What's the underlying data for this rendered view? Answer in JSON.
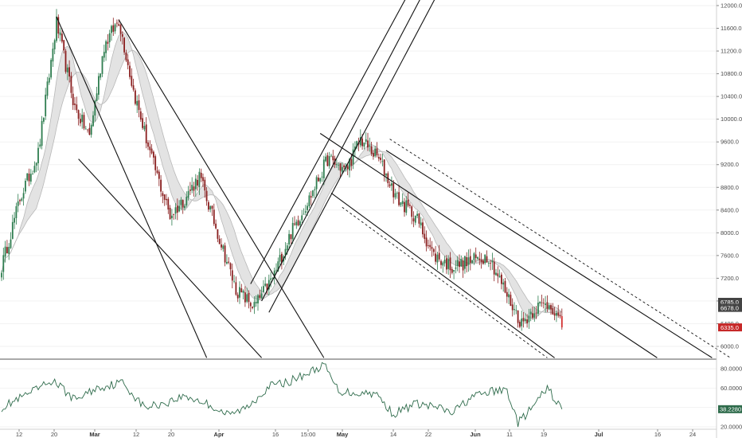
{
  "chart_data": [
    {
      "type": "candlestick",
      "title": "",
      "y_axis": {
        "position": "right",
        "ylim": [
          5800,
          12000
        ],
        "ticks": [
          "12000.0",
          "11600.0",
          "11200.0",
          "10800.0",
          "10400.0",
          "10000.0",
          "9600.0",
          "9200.0",
          "8800.0",
          "8400.0",
          "8000.0",
          "7600.0",
          "7200.0",
          "6800.0",
          "6400.0",
          "6000.0"
        ],
        "price_labels": [
          {
            "text": "6785.0",
            "value": 6785,
            "color": "#444444"
          },
          {
            "text": "6678.0",
            "value": 6678,
            "color": "#444444"
          },
          {
            "text": "6335.0",
            "value": 6335,
            "color": "#c62828"
          }
        ]
      },
      "x_axis": {
        "ticks": [
          {
            "label": "12",
            "bold": false
          },
          {
            "label": "20",
            "bold": false
          },
          {
            "label": "Mar",
            "bold": true
          },
          {
            "label": "12",
            "bold": false
          },
          {
            "label": "20",
            "bold": false
          },
          {
            "label": "Apr",
            "bold": true
          },
          {
            "label": "16",
            "bold": false
          },
          {
            "label": "15:00",
            "bold": false
          },
          {
            "label": "May",
            "bold": true
          },
          {
            "label": "14",
            "bold": false
          },
          {
            "label": "22",
            "bold": false
          },
          {
            "label": "Jun",
            "bold": true
          },
          {
            "label": "11",
            "bold": false
          },
          {
            "label": "19",
            "bold": false
          },
          {
            "label": "Jul",
            "bold": true
          },
          {
            "label": "16",
            "bold": false
          },
          {
            "label": "24",
            "bold": false
          }
        ]
      },
      "anchors": [
        {
          "t": 0,
          "price": 7400
        },
        {
          "t": 10,
          "price": 8600
        },
        {
          "t": 20,
          "price": 9400
        },
        {
          "t": 30,
          "price": 11700
        },
        {
          "t": 40,
          "price": 10200
        },
        {
          "t": 48,
          "price": 9700
        },
        {
          "t": 56,
          "price": 11300
        },
        {
          "t": 64,
          "price": 11750
        },
        {
          "t": 72,
          "price": 10500
        },
        {
          "t": 82,
          "price": 9300
        },
        {
          "t": 92,
          "price": 8300
        },
        {
          "t": 100,
          "price": 8600
        },
        {
          "t": 108,
          "price": 9000
        },
        {
          "t": 118,
          "price": 8000
        },
        {
          "t": 128,
          "price": 7000
        },
        {
          "t": 138,
          "price": 6700
        },
        {
          "t": 148,
          "price": 7200
        },
        {
          "t": 158,
          "price": 8000
        },
        {
          "t": 168,
          "price": 8600
        },
        {
          "t": 178,
          "price": 9300
        },
        {
          "t": 188,
          "price": 9100
        },
        {
          "t": 196,
          "price": 9650
        },
        {
          "t": 206,
          "price": 9300
        },
        {
          "t": 216,
          "price": 8600
        },
        {
          "t": 226,
          "price": 8300
        },
        {
          "t": 236,
          "price": 7600
        },
        {
          "t": 246,
          "price": 7400
        },
        {
          "t": 256,
          "price": 7500
        },
        {
          "t": 266,
          "price": 7600
        },
        {
          "t": 276,
          "price": 6900
        },
        {
          "t": 284,
          "price": 6400
        },
        {
          "t": 292,
          "price": 6700
        },
        {
          "t": 300,
          "price": 6750
        },
        {
          "t": 306,
          "price": 6335
        }
      ],
      "trend_lines": [
        {
          "style": "solid",
          "from": {
            "t": 30,
            "price": 11800
          },
          "to": {
            "t": 112,
            "price": 5800
          }
        },
        {
          "style": "solid",
          "from": {
            "t": 64,
            "price": 11750
          },
          "to": {
            "t": 176,
            "price": 5800
          }
        },
        {
          "style": "solid",
          "from": {
            "t": 42,
            "price": 9300
          },
          "to": {
            "t": 142,
            "price": 5800
          }
        },
        {
          "style": "solid",
          "from": {
            "t": 136,
            "price": 7100
          },
          "to": {
            "t": 222,
            "price": 12200
          }
        },
        {
          "style": "solid",
          "from": {
            "t": 142,
            "price": 6800
          },
          "to": {
            "t": 230,
            "price": 12200
          }
        },
        {
          "style": "solid",
          "from": {
            "t": 146,
            "price": 6600
          },
          "to": {
            "t": 238,
            "price": 12200
          }
        },
        {
          "style": "solid",
          "from": {
            "t": 174,
            "price": 9750
          },
          "to": {
            "t": 358,
            "price": 5800
          }
        },
        {
          "style": "solid",
          "from": {
            "t": 210,
            "price": 9450
          },
          "to": {
            "t": 388,
            "price": 5800
          }
        },
        {
          "style": "solid",
          "from": {
            "t": 180,
            "price": 8700
          },
          "to": {
            "t": 302,
            "price": 5800
          }
        },
        {
          "style": "dashed",
          "from": {
            "t": 212,
            "price": 9650
          },
          "to": {
            "t": 398,
            "price": 5800
          }
        },
        {
          "style": "dashed",
          "from": {
            "t": 186,
            "price": 8450
          },
          "to": {
            "t": 298,
            "price": 5800
          }
        }
      ]
    },
    {
      "type": "line",
      "title": "",
      "ylim": [
        20,
        90
      ],
      "ticks": [
        "80.0000",
        "60.0000",
        "40.0000",
        "20.0000"
      ],
      "current_label": {
        "text": "38.2280",
        "value": 38.228
      },
      "anchors": [
        {
          "t": 0,
          "value": 40
        },
        {
          "t": 16,
          "value": 55
        },
        {
          "t": 28,
          "value": 68
        },
        {
          "t": 40,
          "value": 48
        },
        {
          "t": 52,
          "value": 60
        },
        {
          "t": 66,
          "value": 66
        },
        {
          "t": 78,
          "value": 40
        },
        {
          "t": 90,
          "value": 45
        },
        {
          "t": 100,
          "value": 52
        },
        {
          "t": 112,
          "value": 44
        },
        {
          "t": 124,
          "value": 32
        },
        {
          "t": 134,
          "value": 40
        },
        {
          "t": 146,
          "value": 62
        },
        {
          "t": 156,
          "value": 66
        },
        {
          "t": 168,
          "value": 76
        },
        {
          "t": 176,
          "value": 84
        },
        {
          "t": 184,
          "value": 57
        },
        {
          "t": 194,
          "value": 55
        },
        {
          "t": 204,
          "value": 55
        },
        {
          "t": 214,
          "value": 33
        },
        {
          "t": 226,
          "value": 44
        },
        {
          "t": 238,
          "value": 40
        },
        {
          "t": 246,
          "value": 34
        },
        {
          "t": 256,
          "value": 50
        },
        {
          "t": 266,
          "value": 56
        },
        {
          "t": 276,
          "value": 58
        },
        {
          "t": 282,
          "value": 24
        },
        {
          "t": 290,
          "value": 40
        },
        {
          "t": 298,
          "value": 60
        },
        {
          "t": 306,
          "value": 38
        }
      ]
    }
  ]
}
